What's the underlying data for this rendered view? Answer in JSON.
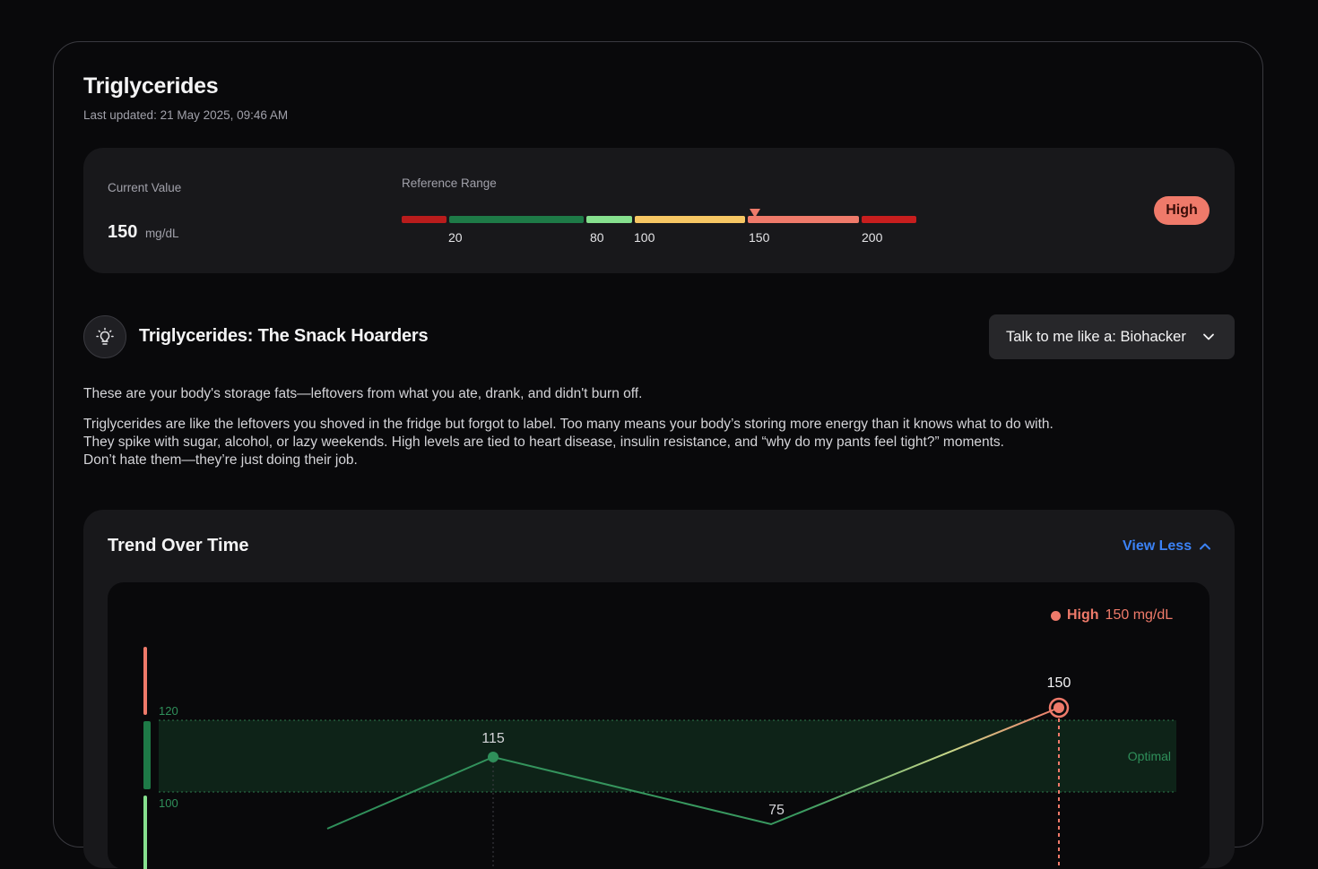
{
  "header": {
    "title": "Triglycerides",
    "last_updated": "Last updated: 21 May 2025, 09:46 AM"
  },
  "current": {
    "label": "Current Value",
    "value": "150",
    "unit": "mg/dL",
    "status": "High",
    "status_color": "#ef7a6a"
  },
  "reference": {
    "label": "Reference Range",
    "ticks": [
      "20",
      "80",
      "100",
      "150",
      "200"
    ],
    "marker_value": 150,
    "segment_colors": [
      "#b91c1c",
      "#1e7a47",
      "#86e08e",
      "#f6c663",
      "#ef7a6a",
      "#c81e1e"
    ]
  },
  "insight": {
    "icon": "lightbulb-icon",
    "title": "Triglycerides: The Snack Hoarders",
    "tone_select": "Talk to me like a: Biohacker",
    "summary": "These are your body's storage fats—leftovers from what you ate, drank, and didn't burn off.",
    "detail_lines": [
      "Triglycerides are like the leftovers you shoved in the fridge but forgot to label. Too many means your body’s storing more energy than it knows what to do with.",
      "They spike with sugar, alcohol, or lazy weekends. High levels are tied to heart disease, insulin resistance, and “why do my pants feel tight?” moments.",
      "Don’t hate them—they’re just doing their job."
    ]
  },
  "trend": {
    "title": "Trend Over Time",
    "toggle_label": "View Less",
    "legend": {
      "status": "High",
      "value": "150 mg/dL"
    },
    "zone_label": "Optimal",
    "axis_labels": [
      "120",
      "100"
    ],
    "chart_data": {
      "type": "line",
      "y_labels_visible": [
        "120",
        "100"
      ],
      "optimal_band": [
        100,
        120
      ],
      "points": [
        {
          "label": "115",
          "value": 115
        },
        {
          "label": "75",
          "value": 75
        },
        {
          "label": "150",
          "value": 150
        }
      ]
    }
  }
}
